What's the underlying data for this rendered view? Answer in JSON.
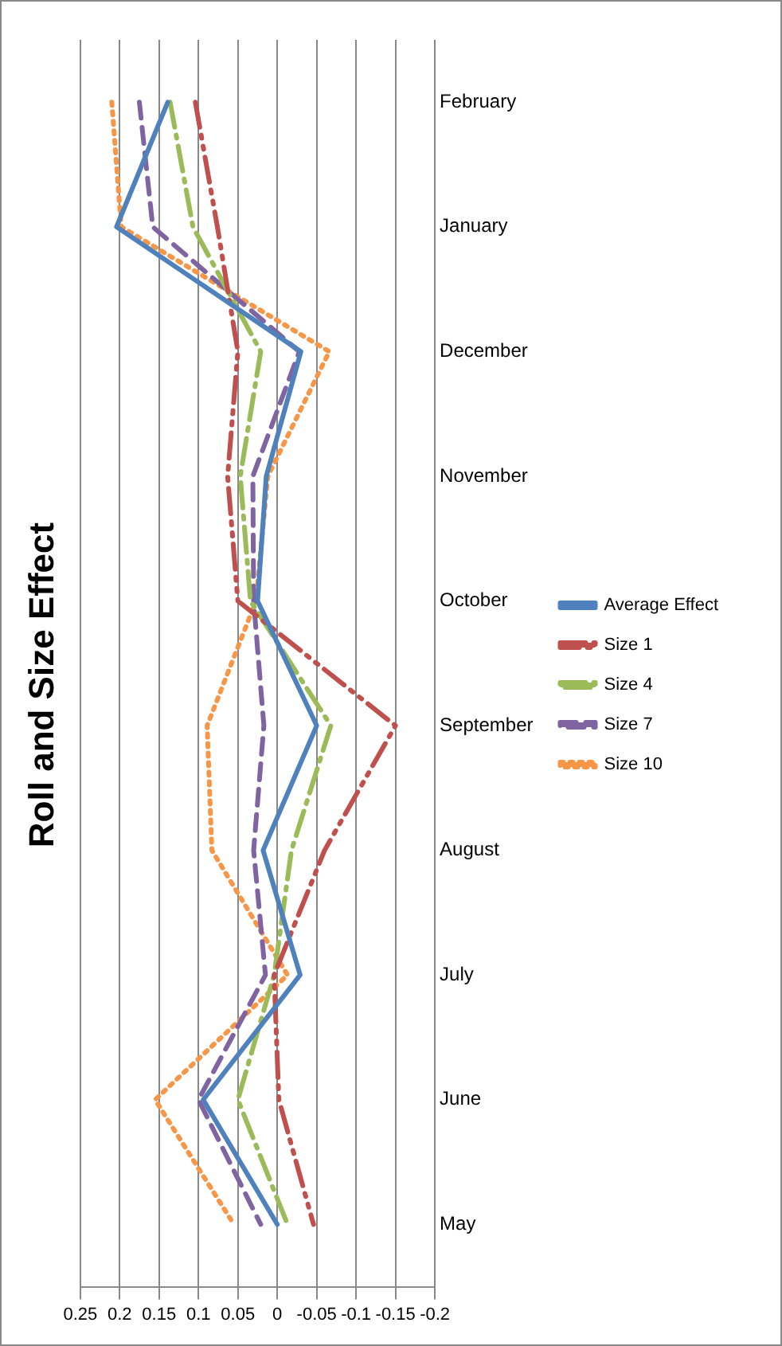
{
  "chart_data": {
    "type": "line",
    "title": "Roll and Size Effect",
    "categories": [
      "February",
      "January",
      "December",
      "November",
      "October",
      "September",
      "August",
      "July",
      "June",
      "May"
    ],
    "series": [
      {
        "name": "Average Effect",
        "color": "#4f81bd",
        "line_style": "solid",
        "values": [
          0.139,
          0.204,
          -0.03,
          0.014,
          0.025,
          -0.05,
          0.018,
          -0.029,
          0.094,
          0
        ]
      },
      {
        "name": "Size 1",
        "color": "#c0504d",
        "line_style": "dashed",
        "values": [
          0.104,
          0.076,
          0.05,
          0.063,
          0.05,
          -0.15,
          -0.06,
          0.004,
          -0.002,
          -0.046
        ]
      },
      {
        "name": "Size 4",
        "color": "#9bbb59",
        "line_style": "dashed",
        "values": [
          0.136,
          0.107,
          0.021,
          0.047,
          0.034,
          -0.068,
          -0.018,
          0.004,
          0.05,
          -0.013
        ]
      },
      {
        "name": "Size 7",
        "color": "#8064a2",
        "line_style": "dashed",
        "values": [
          0.175,
          0.158,
          -0.028,
          0.031,
          0.03,
          0.017,
          0.03,
          0.015,
          0.1,
          0.021
        ]
      },
      {
        "name": "Size 10",
        "color": "#f79646",
        "line_style": "dotted",
        "values": [
          0.21,
          0.198,
          -0.066,
          0.012,
          0.027,
          0.089,
          0.083,
          -0.013,
          0.155,
          0.055
        ]
      }
    ],
    "orientation": "horizontal",
    "xlim": [
      0.25,
      -0.2
    ],
    "xticks": [
      0.25,
      0.2,
      0.15,
      0.1,
      0.05,
      0,
      -0.05,
      -0.1,
      -0.15,
      -0.2
    ],
    "grid": "x",
    "legend": "right",
    "marker": "none"
  }
}
